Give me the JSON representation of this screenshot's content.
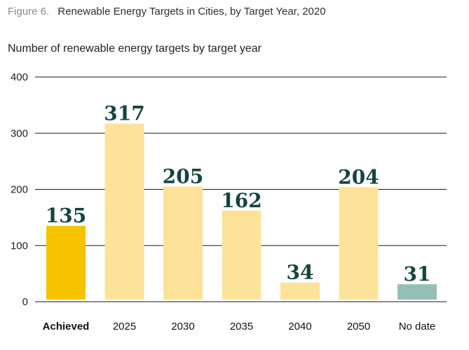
{
  "figure": {
    "label": "Figure 6.",
    "title": "Renewable Energy Targets in Cities, by Target Year, 2020"
  },
  "colors": {
    "achieved": "#f7c300",
    "target": "#fde39a",
    "no_date": "#95bfb3",
    "value_text": "#16443f"
  },
  "chart_data": {
    "type": "bar",
    "title": "Renewable Energy Targets in Cities, by Target Year, 2020",
    "ylabel": "Number of renewable energy targets by target year",
    "xlabel": "",
    "categories": [
      "Achieved",
      "2025",
      "2030",
      "2035",
      "2040",
      "2050",
      "No date"
    ],
    "values": [
      135,
      317,
      205,
      162,
      34,
      204,
      31
    ],
    "value_labels": [
      "135",
      "317",
      "205",
      "162",
      "34",
      "204",
      "31"
    ],
    "bar_colors": [
      "achieved",
      "target",
      "target",
      "target",
      "target",
      "target",
      "no_date"
    ],
    "bold_categories": [
      "Achieved"
    ],
    "ylim": [
      0,
      400
    ],
    "yticks": [
      0,
      100,
      200,
      300,
      400
    ],
    "grid": true,
    "legend": "none"
  }
}
